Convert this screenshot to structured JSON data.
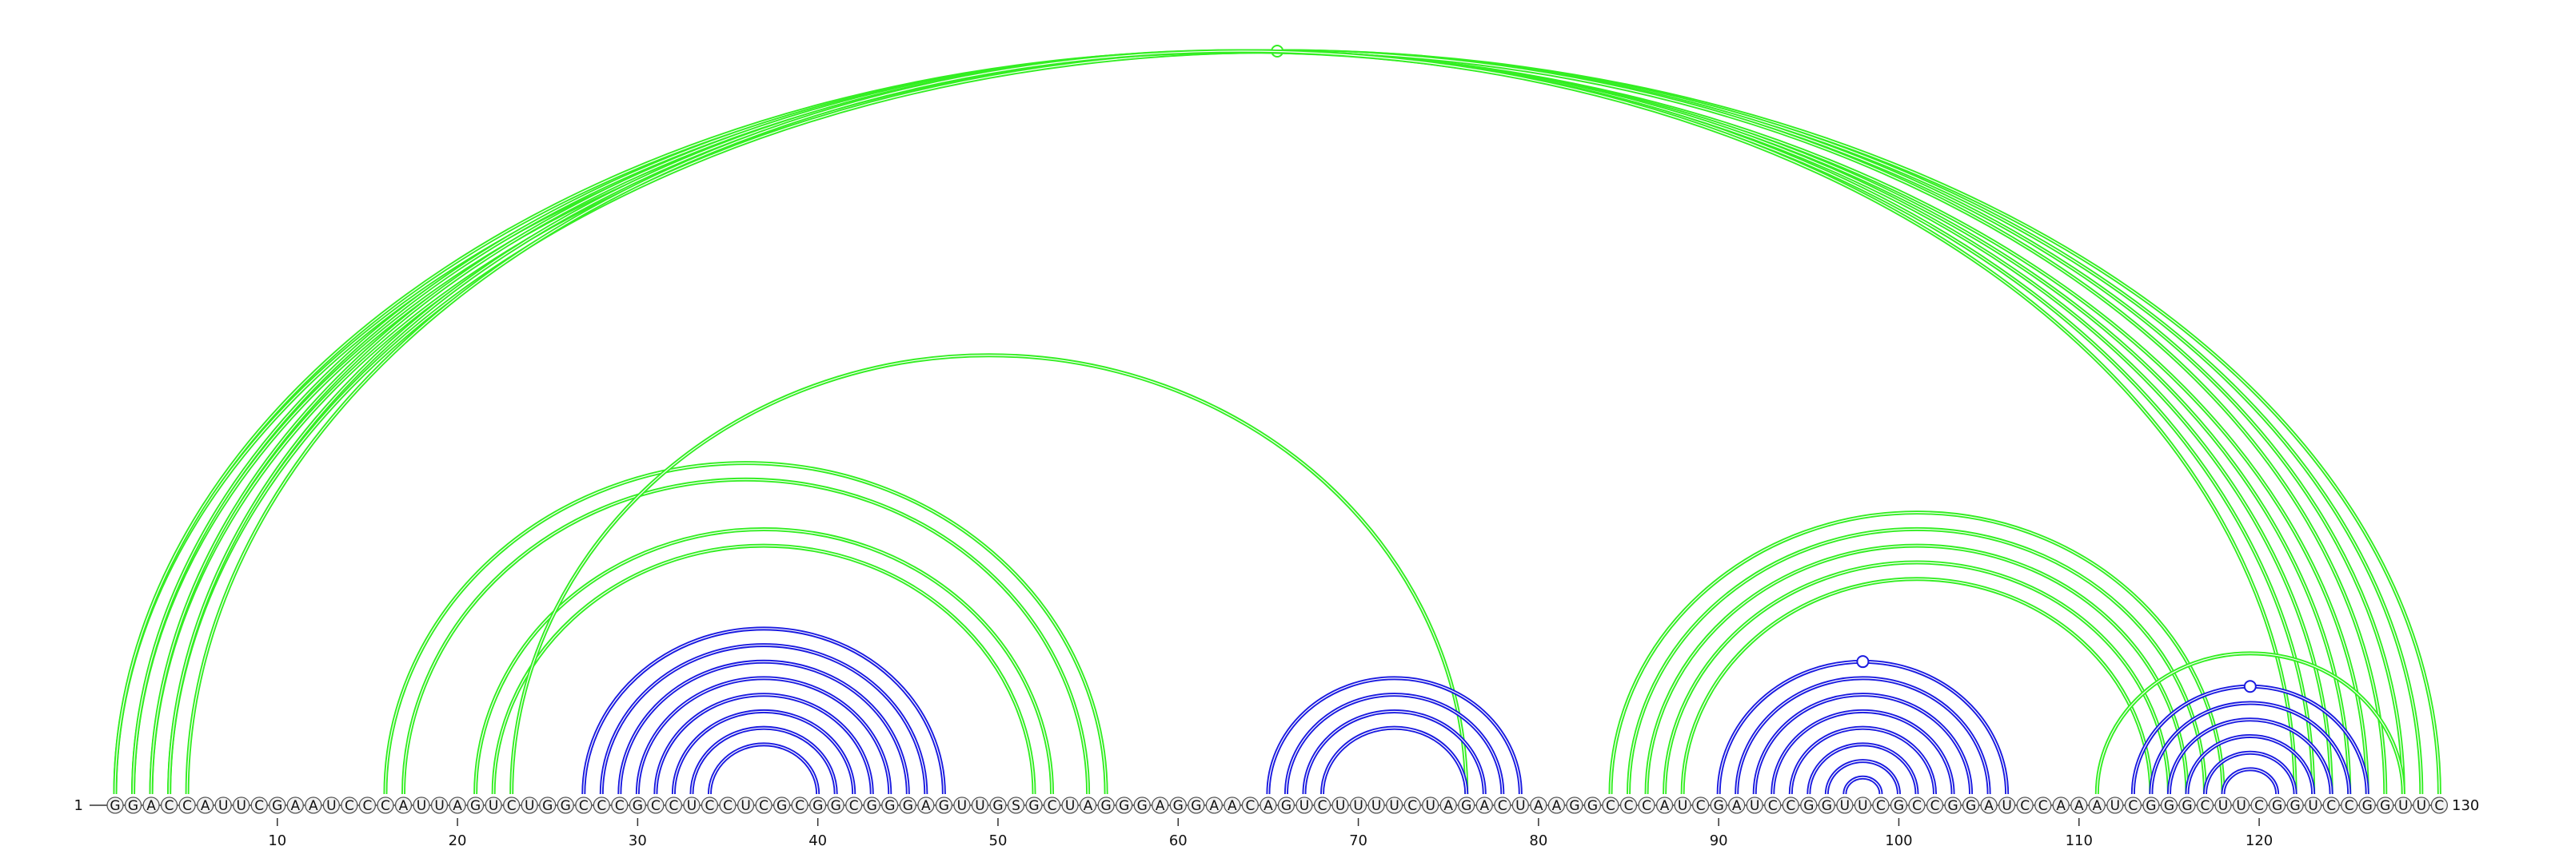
{
  "sequence": "GGACCAUUCGAAUCCCAUUAGUCUGGCCCGCCUCCUCGCGGCGGGAGUUGSGCUAGGGAGGAACAGUCUUUUCUAGACUAAGGCCCAUCGAUCCGGUUCGCCGGAUCCAAAUCGGGCUUCGGUCCGGUUC",
  "start_label": "1",
  "end_label": "130",
  "position_ticks": [
    10,
    20,
    30,
    40,
    50,
    60,
    70,
    80,
    90,
    100,
    110,
    120
  ],
  "colors": {
    "upper_arcs": "#33ee22",
    "lower_arcs": "#1a1ae0",
    "nucleotide_stroke": "#555555",
    "text": "#111111"
  },
  "arc_groups": [
    {
      "color": "upper_arcs",
      "pairs": [
        [
          1,
          130
        ],
        [
          2,
          129
        ],
        [
          3,
          128
        ],
        [
          4,
          127
        ]
      ],
      "marker": {
        "at": 66,
        "label": "○"
      }
    },
    {
      "color": "upper_arcs",
      "pairs": [
        [
          1,
          126
        ],
        [
          2,
          125
        ],
        [
          3,
          124
        ],
        [
          4,
          123
        ],
        [
          5,
          122
        ]
      ]
    },
    {
      "color": "upper_arcs",
      "pairs": [
        [
          16,
          56
        ],
        [
          17,
          55
        ]
      ]
    },
    {
      "color": "upper_arcs",
      "pairs": [
        [
          21,
          53
        ],
        [
          22,
          52
        ]
      ]
    },
    {
      "color": "upper_arcs",
      "pairs": [
        [
          23,
          76
        ]
      ]
    },
    {
      "color": "upper_arcs",
      "pairs": [
        [
          84,
          118
        ],
        [
          85,
          117
        ],
        [
          86,
          116
        ],
        [
          87,
          115
        ],
        [
          88,
          114
        ]
      ]
    },
    {
      "color": "upper_arcs",
      "pairs": [
        [
          111,
          128
        ]
      ]
    },
    {
      "color": "lower_arcs",
      "pairs": [
        [
          27,
          47
        ],
        [
          28,
          46
        ],
        [
          29,
          45
        ],
        [
          30,
          44
        ],
        [
          31,
          43
        ],
        [
          32,
          42
        ],
        [
          33,
          41
        ],
        [
          34,
          40
        ]
      ]
    },
    {
      "color": "lower_arcs",
      "pairs": [
        [
          65,
          79
        ],
        [
          66,
          78
        ],
        [
          67,
          77
        ],
        [
          68,
          76
        ]
      ]
    },
    {
      "color": "lower_arcs",
      "pairs": [
        [
          90,
          106
        ],
        [
          91,
          105
        ],
        [
          92,
          104
        ],
        [
          93,
          103
        ],
        [
          94,
          102
        ],
        [
          95,
          101
        ],
        [
          96,
          100
        ],
        [
          97,
          99
        ]
      ],
      "marker": {
        "at": 98,
        "label": "○"
      }
    },
    {
      "color": "lower_arcs",
      "pairs": [
        [
          113,
          126
        ],
        [
          114,
          125
        ],
        [
          115,
          124
        ],
        [
          116,
          123
        ],
        [
          117,
          122
        ],
        [
          118,
          121
        ]
      ],
      "marker": {
        "at": 119,
        "label": "○"
      }
    }
  ]
}
